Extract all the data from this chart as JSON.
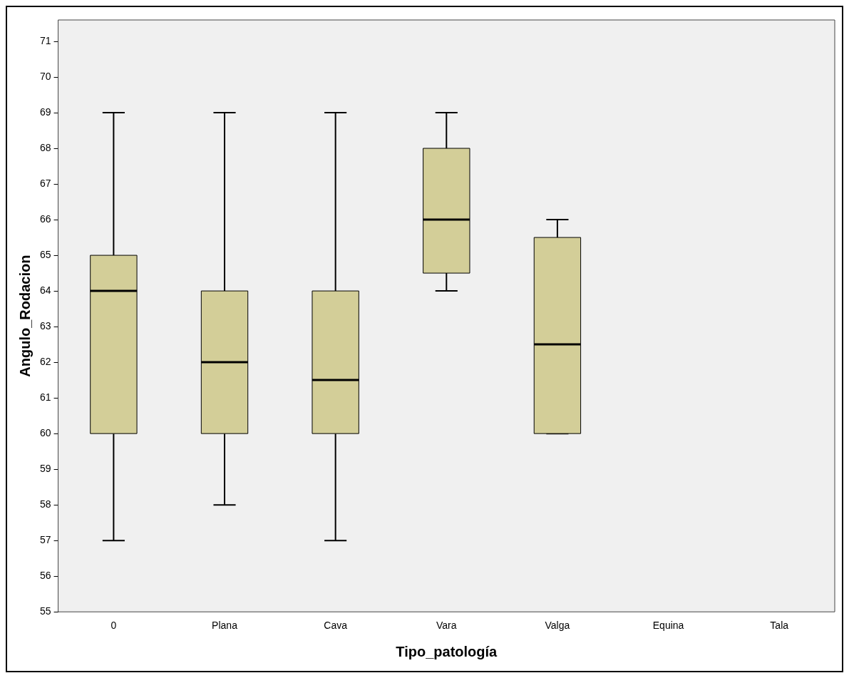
{
  "chart_data": {
    "type": "box",
    "xlabel": "Tipo_patología",
    "ylabel": "Angulo_Rodacion",
    "categories": [
      "0",
      "Plana",
      "Cava",
      "Vara",
      "Valga",
      "Equina",
      "Tala"
    ],
    "color": "#d3ce98",
    "boxes": [
      {
        "low": 57,
        "q1": 60,
        "median": 64,
        "q3": 65,
        "high": 69
      },
      {
        "low": 58,
        "q1": 60,
        "median": 62,
        "q3": 64,
        "high": 69
      },
      {
        "low": 57,
        "q1": 60,
        "median": 61.5,
        "q3": 64,
        "high": 69
      },
      {
        "low": 64,
        "q1": 64.5,
        "median": 66,
        "q3": 68,
        "high": 69
      },
      {
        "low": 60,
        "q1": 60,
        "median": 62.5,
        "q3": 65.5,
        "high": 66
      },
      null,
      null
    ],
    "ylim": [
      55,
      71.6
    ],
    "yticks": [
      55,
      56,
      57,
      58,
      59,
      60,
      61,
      62,
      63,
      64,
      65,
      66,
      67,
      68,
      69,
      70,
      71
    ],
    "grid": false
  }
}
